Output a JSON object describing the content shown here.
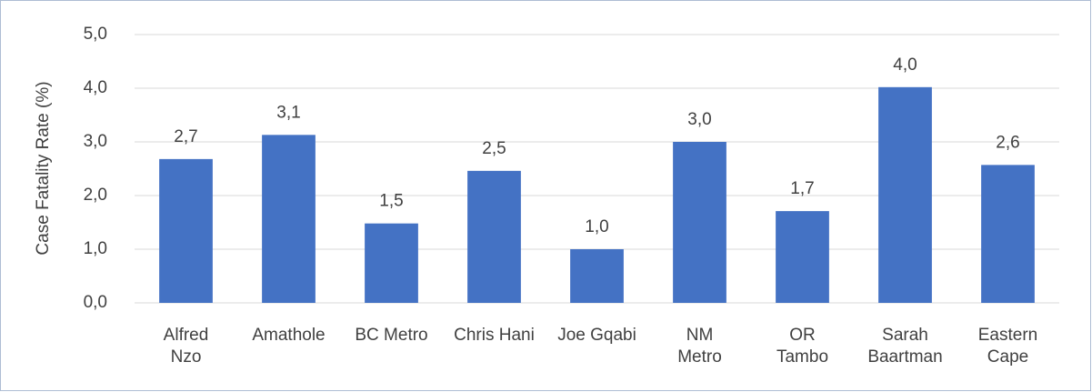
{
  "chart_data": {
    "type": "bar",
    "y_label": "Case Fatality Rate (%)",
    "categories": [
      "Alfred\nNzo",
      "Amathole",
      "BC Metro",
      "Chris Hani",
      "Joe Gqabi",
      "NM\nMetro",
      "OR\nTambo",
      "Sarah\nBaartman",
      "Eastern\nCape"
    ],
    "values": [
      2.68,
      3.13,
      1.48,
      2.46,
      1.0,
      3.0,
      1.71,
      4.02,
      2.57
    ],
    "value_labels": [
      "2,7",
      "3,1",
      "1,5",
      "2,5",
      "1,0",
      "3,0",
      "1,7",
      "4,0",
      "2,6"
    ],
    "color": "#4472c4",
    "ylim": [
      0,
      5
    ],
    "yticks": [
      {
        "value": 0,
        "label": "0,0"
      },
      {
        "value": 1,
        "label": "1,0"
      },
      {
        "value": 2,
        "label": "2,0"
      },
      {
        "value": 3,
        "label": "3,0"
      },
      {
        "value": 4,
        "label": "4,0"
      },
      {
        "value": 5,
        "label": "5,0"
      }
    ],
    "grid": true
  }
}
